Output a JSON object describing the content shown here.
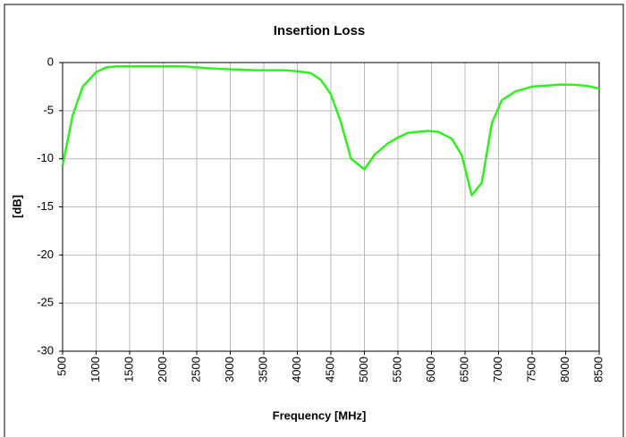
{
  "chart_data": {
    "type": "line",
    "title": "Insertion Loss",
    "xlabel": "Frequency [MHz]",
    "ylabel": "[dB]",
    "x": [
      500,
      650,
      800,
      1000,
      1150,
      1300,
      1500,
      1700,
      1900,
      2100,
      2300,
      2500,
      2700,
      3000,
      3400,
      3800,
      4000,
      4200,
      4350,
      4500,
      4650,
      4800,
      5000,
      5150,
      5350,
      5500,
      5650,
      5800,
      5950,
      6100,
      6300,
      6450,
      6600,
      6750,
      6900,
      7050,
      7250,
      7500,
      7700,
      7900,
      8100,
      8300,
      8500
    ],
    "series": [
      {
        "name": "Insertion Loss",
        "color": "#33ee22",
        "values": [
          -10.7,
          -5.5,
          -2.5,
          -1.0,
          -0.5,
          -0.4,
          -0.4,
          -0.4,
          -0.4,
          -0.4,
          -0.4,
          -0.5,
          -0.6,
          -0.7,
          -0.8,
          -0.8,
          -0.9,
          -1.1,
          -1.8,
          -3.3,
          -6.2,
          -10.0,
          -11.1,
          -9.6,
          -8.4,
          -7.8,
          -7.3,
          -7.2,
          -7.1,
          -7.2,
          -7.9,
          -9.6,
          -13.8,
          -12.5,
          -6.3,
          -3.9,
          -3.0,
          -2.5,
          -2.4,
          -2.3,
          -2.3,
          -2.4,
          -2.7
        ]
      }
    ],
    "xlim": [
      500,
      8500
    ],
    "xticks": [
      500,
      1000,
      1500,
      2000,
      2500,
      3000,
      3500,
      4000,
      4500,
      5000,
      5500,
      6000,
      6500,
      7000,
      7500,
      8000,
      8500
    ],
    "ylim": [
      -30,
      0
    ],
    "yticks": [
      -30,
      -25,
      -20,
      -15,
      -10,
      -5,
      0
    ],
    "grid": true
  }
}
